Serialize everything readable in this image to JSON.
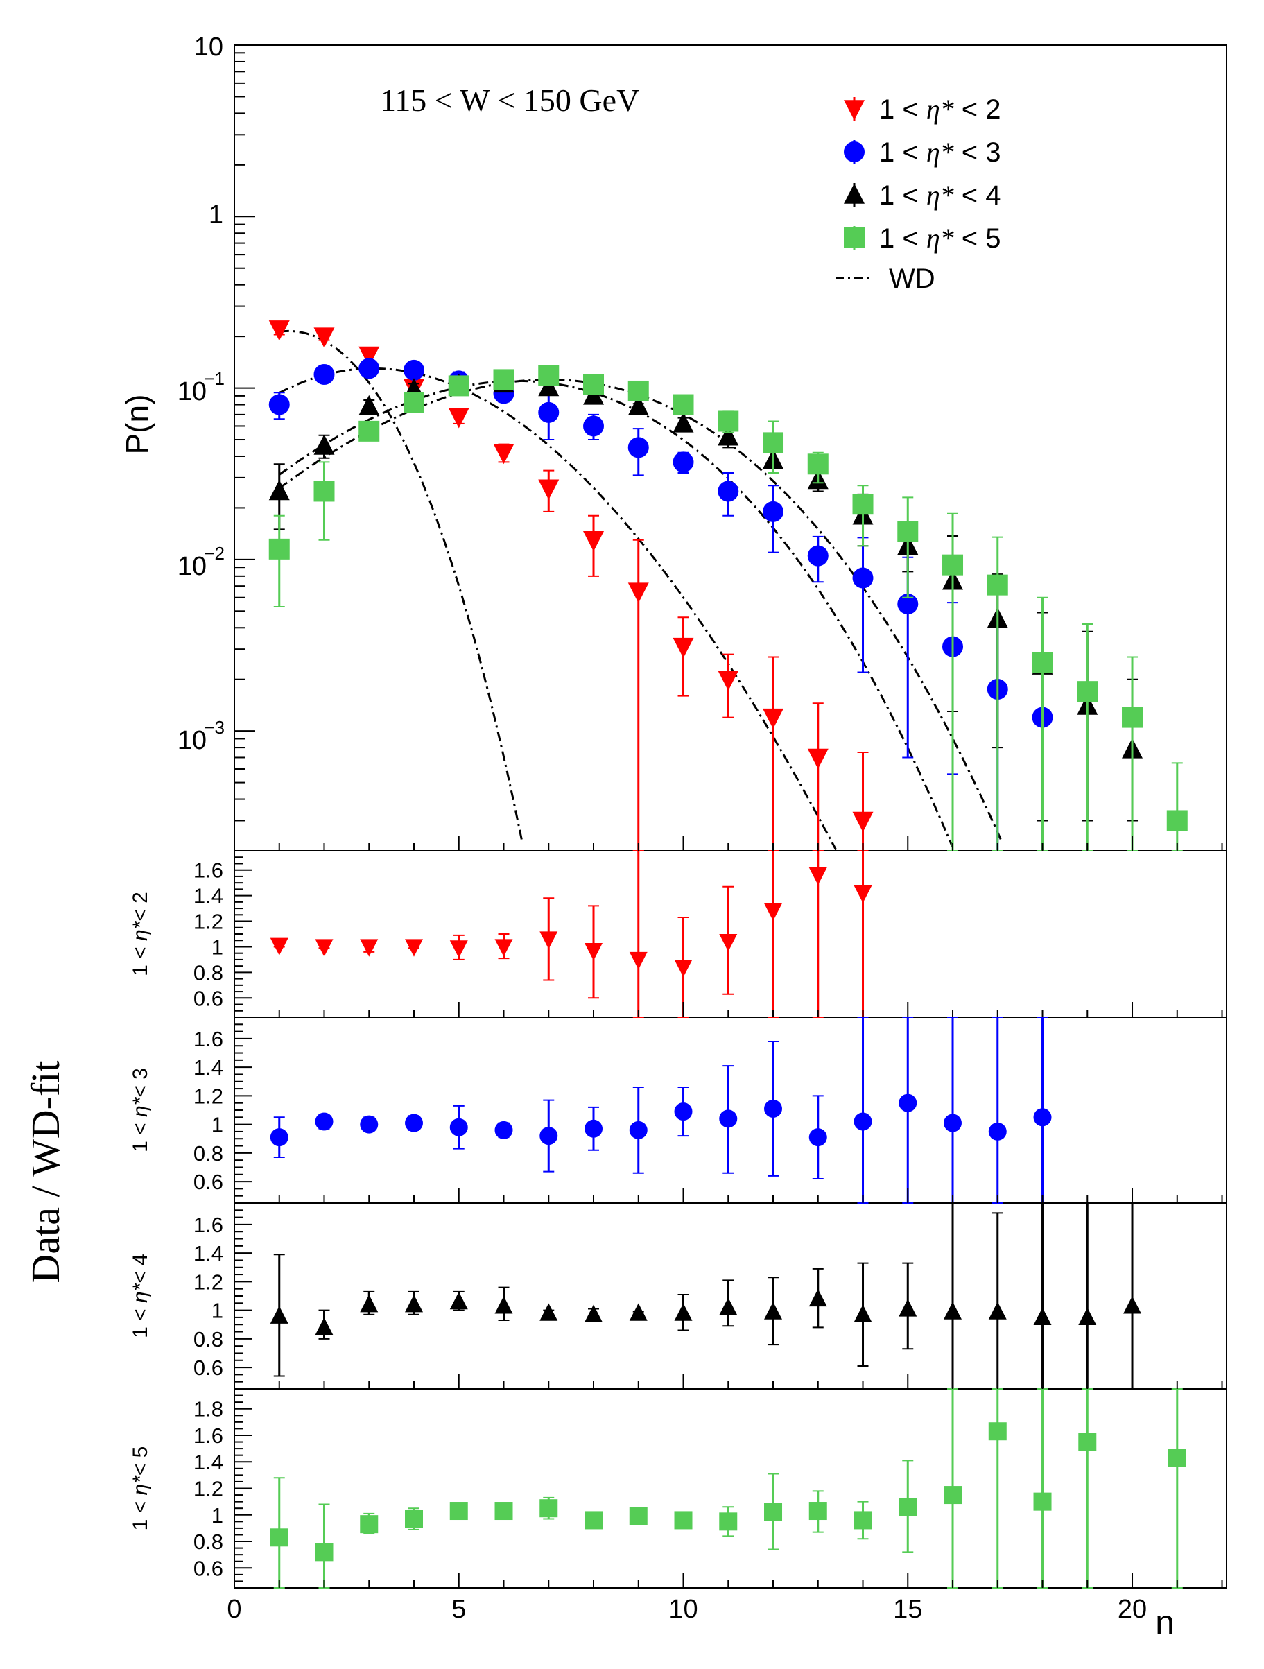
{
  "chart_data": {
    "type": "scatter",
    "annotation": "115 < W < 150 GeV",
    "x_axis": {
      "label": "n",
      "range": [
        0,
        22.1
      ],
      "ticks": [
        "0",
        "5",
        "10",
        "15",
        "20"
      ]
    },
    "main_panel": {
      "ylabel": "P(n)",
      "yscale": "log",
      "yrange": [
        0.0002,
        10
      ],
      "ytick_labels": {
        "t10": "10",
        "t1": "1",
        "t01": "10",
        "t01_exp": "−1",
        "t001": "10",
        "t001_exp": "−2",
        "t0001": "10",
        "t0001_exp": "−3"
      }
    },
    "ratio_ylabel": "Data / WD-fit",
    "legend": {
      "entries": [
        {
          "id": "eta2",
          "prefix": "1 < ",
          "sym": "η*",
          "suffix": " < 2",
          "marker": "triangle-down",
          "color": "#ff0000"
        },
        {
          "id": "eta3",
          "prefix": "1 < ",
          "sym": "η*",
          "suffix": " < 3",
          "marker": "circle",
          "color": "#0000ff"
        },
        {
          "id": "eta4",
          "prefix": "1 < ",
          "sym": "η*",
          "suffix": " < 4",
          "marker": "triangle-up",
          "color": "#000000"
        },
        {
          "id": "eta5",
          "prefix": "1 < ",
          "sym": "η*",
          "suffix": " < 5",
          "marker": "square",
          "color": "#55cc55"
        }
      ],
      "wd_label": "WD"
    },
    "series": [
      {
        "name": "1 < η* < 2",
        "marker": "triangle-down",
        "color": "#ff0000",
        "n": [
          1,
          2,
          3,
          4,
          5,
          6,
          7,
          8,
          9,
          10,
          11,
          12,
          13,
          14
        ],
        "P": [
          0.22,
          0.2,
          0.155,
          0.1,
          0.068,
          0.042,
          0.026,
          0.013,
          0.0065,
          0.0031,
          0.002,
          0.0012,
          0.0007,
          0.0003
        ],
        "P_lo": [
          0.205,
          0.19,
          0.145,
          0.093,
          0.062,
          0.037,
          0.019,
          0.008,
          0.0002,
          0.0016,
          0.0012,
          0.0002,
          0.0002,
          0.0002
        ],
        "P_hi": [
          0.235,
          0.21,
          0.165,
          0.107,
          0.074,
          0.047,
          0.033,
          0.018,
          0.013,
          0.0046,
          0.0028,
          0.0027,
          0.00145,
          0.00075
        ],
        "fit": {
          "n0": 1.2,
          "peak": 0.215,
          "c": 0.0845,
          "d": 0.00485
        },
        "ratio": {
          "ylabel": {
            "prefix": "1 < ",
            "sym": "η*",
            "suffix": "< 2"
          },
          "yrange": [
            0.45,
            1.75
          ],
          "yticks": [
            "0.6",
            "0.8",
            "1",
            "1.2",
            "1.4",
            "1.6"
          ],
          "values": [
            1.01,
            1.0,
            1.0,
            1.0,
            0.99,
            1.0,
            1.06,
            0.97,
            0.9,
            0.84,
            1.04,
            1.28,
            1.56,
            1.42
          ],
          "lo": [
            1.0,
            0.99,
            0.96,
            0.99,
            0.9,
            0.91,
            0.74,
            0.6,
            0.45,
            0.45,
            0.63,
            0.45,
            0.45,
            0.45
          ],
          "hi": [
            1.02,
            1.01,
            1.04,
            1.01,
            1.09,
            1.1,
            1.38,
            1.32,
            1.75,
            1.23,
            1.47,
            1.75,
            1.75,
            1.75
          ]
        }
      },
      {
        "name": "1 < η* < 3",
        "marker": "circle",
        "color": "#0000ff",
        "n": [
          1,
          2,
          3,
          4,
          5,
          6,
          7,
          8,
          9,
          10,
          11,
          12,
          13,
          14,
          15,
          16,
          17,
          18
        ],
        "P": [
          0.08,
          0.12,
          0.13,
          0.127,
          0.11,
          0.093,
          0.072,
          0.06,
          0.045,
          0.037,
          0.025,
          0.019,
          0.0105,
          0.0078,
          0.0055,
          0.0031,
          0.00175,
          0.0012
        ],
        "P_lo": [
          0.066,
          0.112,
          0.122,
          0.12,
          0.096,
          0.083,
          0.05,
          0.05,
          0.031,
          0.032,
          0.018,
          0.011,
          0.0074,
          0.0022,
          0.0007,
          0.00056,
          0.0002,
          0.0002
        ],
        "P_hi": [
          0.094,
          0.128,
          0.138,
          0.134,
          0.124,
          0.103,
          0.094,
          0.07,
          0.058,
          0.042,
          0.032,
          0.027,
          0.0136,
          0.0134,
          0.0103,
          0.0056,
          0.0041,
          0.0027
        ],
        "fit": {
          "n0": 3.1,
          "peak": 0.13,
          "c": 0.0313,
          "d": -0.00047
        },
        "ratio": {
          "ylabel": {
            "prefix": "1 < ",
            "sym": "η*",
            "suffix": "< 3"
          },
          "yrange": [
            0.45,
            1.75
          ],
          "yticks": [
            "0.6",
            "0.8",
            "1",
            "1.2",
            "1.4",
            "1.6"
          ],
          "values": [
            0.91,
            1.02,
            1.0,
            1.01,
            0.98,
            0.96,
            0.92,
            0.97,
            0.96,
            1.09,
            1.04,
            1.11,
            0.91,
            1.02,
            1.15,
            1.01,
            0.95,
            1.05
          ],
          "lo": [
            0.77,
            0.97,
            0.95,
            0.96,
            0.83,
            0.91,
            0.67,
            0.82,
            0.66,
            0.92,
            0.66,
            0.64,
            0.62,
            0.45,
            0.45,
            0.45,
            0.45,
            0.45
          ],
          "hi": [
            1.05,
            1.07,
            1.05,
            1.06,
            1.13,
            1.01,
            1.17,
            1.12,
            1.26,
            1.26,
            1.41,
            1.58,
            1.2,
            1.75,
            1.75,
            1.75,
            1.75,
            1.75
          ]
        }
      },
      {
        "name": "1 < η* < 4",
        "marker": "triangle-up",
        "color": "#000000",
        "n": [
          1,
          2,
          3,
          4,
          5,
          6,
          7,
          8,
          9,
          10,
          11,
          12,
          13,
          14,
          15,
          16,
          17,
          18,
          19,
          20
        ],
        "P": [
          0.025,
          0.046,
          0.078,
          0.098,
          0.104,
          0.106,
          0.101,
          0.09,
          0.078,
          0.062,
          0.052,
          0.038,
          0.029,
          0.018,
          0.012,
          0.0075,
          0.0045,
          0.0024,
          0.0014,
          0.00078
        ],
        "P_lo": [
          0.015,
          0.039,
          0.071,
          0.09,
          0.096,
          0.097,
          0.098,
          0.086,
          0.075,
          0.057,
          0.045,
          0.032,
          0.025,
          0.012,
          0.0085,
          0.0013,
          0.0008,
          0.0003,
          0.0003,
          0.0003
        ],
        "P_hi": [
          0.036,
          0.053,
          0.085,
          0.106,
          0.112,
          0.115,
          0.104,
          0.094,
          0.081,
          0.067,
          0.059,
          0.044,
          0.033,
          0.024,
          0.0156,
          0.0137,
          0.0082,
          0.0049,
          0.0038,
          0.002
        ],
        "fit": {
          "n0": 6.3,
          "peak": 0.11,
          "c": 0.0228,
          "d": 0.00063
        },
        "ratio": {
          "ylabel": {
            "prefix": "1 < ",
            "sym": "η*",
            "suffix": "< 4"
          },
          "yrange": [
            0.45,
            1.75
          ],
          "yticks": [
            "0.6",
            "0.8",
            "1",
            "1.2",
            "1.4",
            "1.6"
          ],
          "values": [
            0.96,
            0.88,
            1.04,
            1.04,
            1.06,
            1.03,
            0.98,
            0.97,
            0.98,
            0.98,
            1.02,
            0.99,
            1.08,
            0.97,
            1.01,
            0.99,
            0.99,
            0.95,
            0.95,
            1.03
          ],
          "lo": [
            0.54,
            0.8,
            0.97,
            0.97,
            1.0,
            0.93,
            0.96,
            0.93,
            0.97,
            0.86,
            0.89,
            0.76,
            0.88,
            0.61,
            0.73,
            0.45,
            0.45,
            0.45,
            0.45,
            0.45
          ],
          "hi": [
            1.39,
            1.0,
            1.13,
            1.13,
            1.13,
            1.16,
            1.0,
            1.01,
            0.99,
            1.11,
            1.21,
            1.23,
            1.29,
            1.33,
            1.33,
            1.75,
            1.68,
            1.75,
            1.75,
            1.75
          ]
        }
      },
      {
        "name": "1 < η* < 5",
        "marker": "square",
        "color": "#55cc55",
        "n": [
          1,
          2,
          3,
          4,
          5,
          6,
          7,
          8,
          9,
          10,
          11,
          12,
          13,
          14,
          15,
          16,
          17,
          18,
          19,
          20,
          21
        ],
        "P": [
          0.0115,
          0.025,
          0.056,
          0.082,
          0.103,
          0.112,
          0.118,
          0.105,
          0.096,
          0.08,
          0.064,
          0.048,
          0.036,
          0.021,
          0.0145,
          0.0093,
          0.0071,
          0.0025,
          0.0017,
          0.0012,
          0.0003
        ],
        "P_lo": [
          0.0053,
          0.013,
          0.05,
          0.075,
          0.097,
          0.107,
          0.113,
          0.1,
          0.09,
          0.073,
          0.055,
          0.032,
          0.028,
          0.012,
          0.006,
          0.0002,
          0.0002,
          0.0002,
          0.0002,
          0.0002,
          0.0002
        ],
        "P_hi": [
          0.018,
          0.037,
          0.062,
          0.089,
          0.109,
          0.117,
          0.123,
          0.11,
          0.102,
          0.087,
          0.073,
          0.064,
          0.042,
          0.027,
          0.023,
          0.0185,
          0.0135,
          0.006,
          0.0042,
          0.0027,
          0.00065
        ],
        "fit": {
          "n0": 7.0,
          "peak": 0.112,
          "c": 0.0209,
          "d": 0.00055
        },
        "ratio": {
          "ylabel": {
            "prefix": "1 < ",
            "sym": "η*",
            "suffix": "< 5"
          },
          "yrange": [
            0.45,
            1.95
          ],
          "yticks": [
            "0.6",
            "0.8",
            "1",
            "1.2",
            "1.4",
            "1.6",
            "1.8"
          ],
          "values": [
            0.83,
            0.72,
            0.93,
            0.97,
            1.03,
            1.03,
            1.05,
            0.96,
            0.99,
            0.96,
            0.95,
            1.02,
            1.03,
            0.96,
            1.06,
            1.15,
            1.63,
            1.1,
            1.55,
            1.43
          ],
          "n": [
            1,
            2,
            3,
            4,
            5,
            6,
            7,
            8,
            9,
            10,
            11,
            12,
            13,
            14,
            15,
            16,
            17,
            18,
            19,
            21
          ],
          "lo": [
            0.45,
            0.45,
            0.86,
            0.89,
            0.98,
            1.0,
            0.97,
            0.92,
            0.94,
            0.92,
            0.84,
            0.74,
            0.87,
            0.82,
            0.72,
            0.45,
            0.45,
            0.45,
            0.45,
            0.45
          ],
          "hi": [
            1.28,
            1.08,
            1.01,
            1.05,
            1.08,
            1.06,
            1.13,
            1.0,
            1.04,
            1.0,
            1.06,
            1.31,
            1.18,
            1.1,
            1.41,
            1.95,
            1.95,
            1.95,
            1.95,
            1.95
          ]
        }
      }
    ]
  }
}
